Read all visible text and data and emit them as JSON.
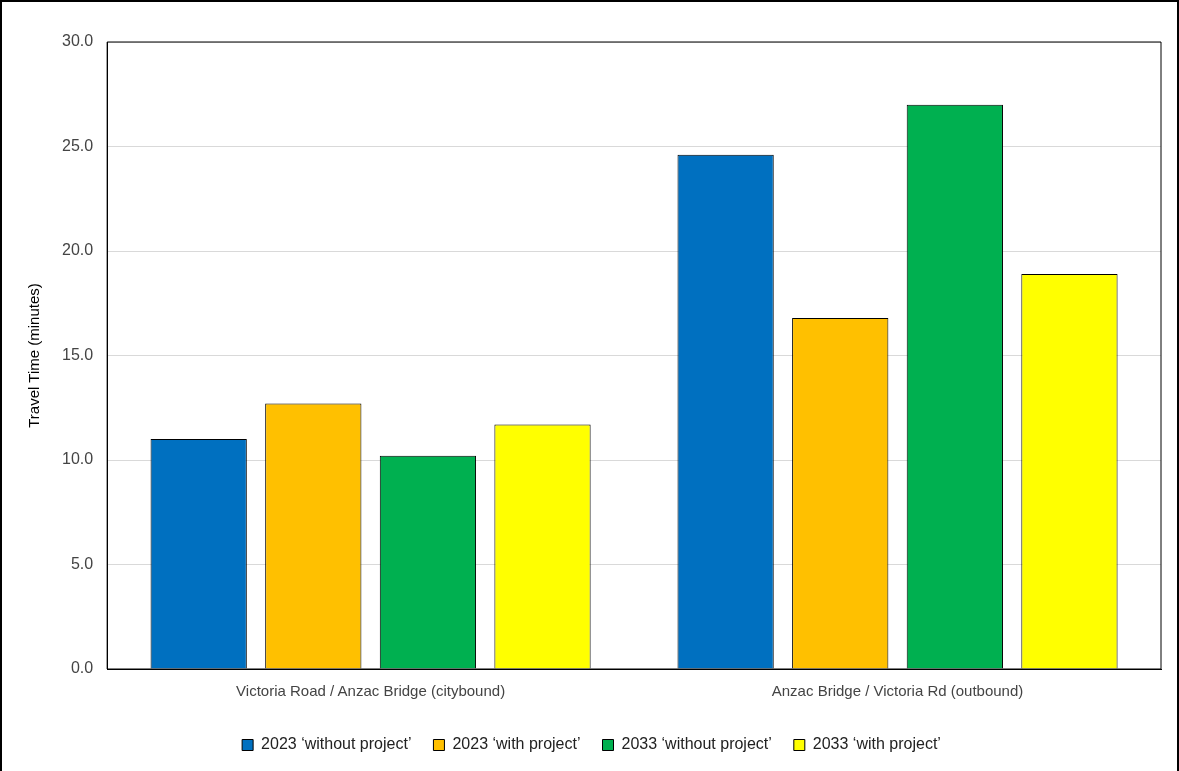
{
  "chart_data": {
    "type": "bar",
    "ylabel": "Travel Time (minutes)",
    "categories": [
      "Victoria Road / Anzac Bridge (citybound)",
      "Anzac Bridge / Victoria Rd (outbound)"
    ],
    "series": [
      {
        "name": "2023 ‘without project’",
        "color": "#0070c0",
        "values": [
          11.0,
          24.6
        ]
      },
      {
        "name": "2023 ‘with project’",
        "color": "#ffc000",
        "values": [
          12.7,
          16.8
        ]
      },
      {
        "name": "2033 ‘without project’",
        "color": "#00b050",
        "values": [
          10.2,
          27.0
        ]
      },
      {
        "name": "2033 ‘with project’",
        "color": "#ffff00",
        "values": [
          11.7,
          18.9
        ]
      }
    ],
    "ylim": [
      0,
      30
    ],
    "yticks": [
      {
        "value": 0,
        "label": "0.0"
      },
      {
        "value": 5,
        "label": "5.0"
      },
      {
        "value": 10,
        "label": "10.0"
      },
      {
        "value": 15,
        "label": "15.0"
      },
      {
        "value": 20,
        "label": "20.0"
      },
      {
        "value": 25,
        "label": "25.0"
      },
      {
        "value": 30,
        "label": "30.0"
      }
    ],
    "grid": "y",
    "legend": "bottom"
  }
}
